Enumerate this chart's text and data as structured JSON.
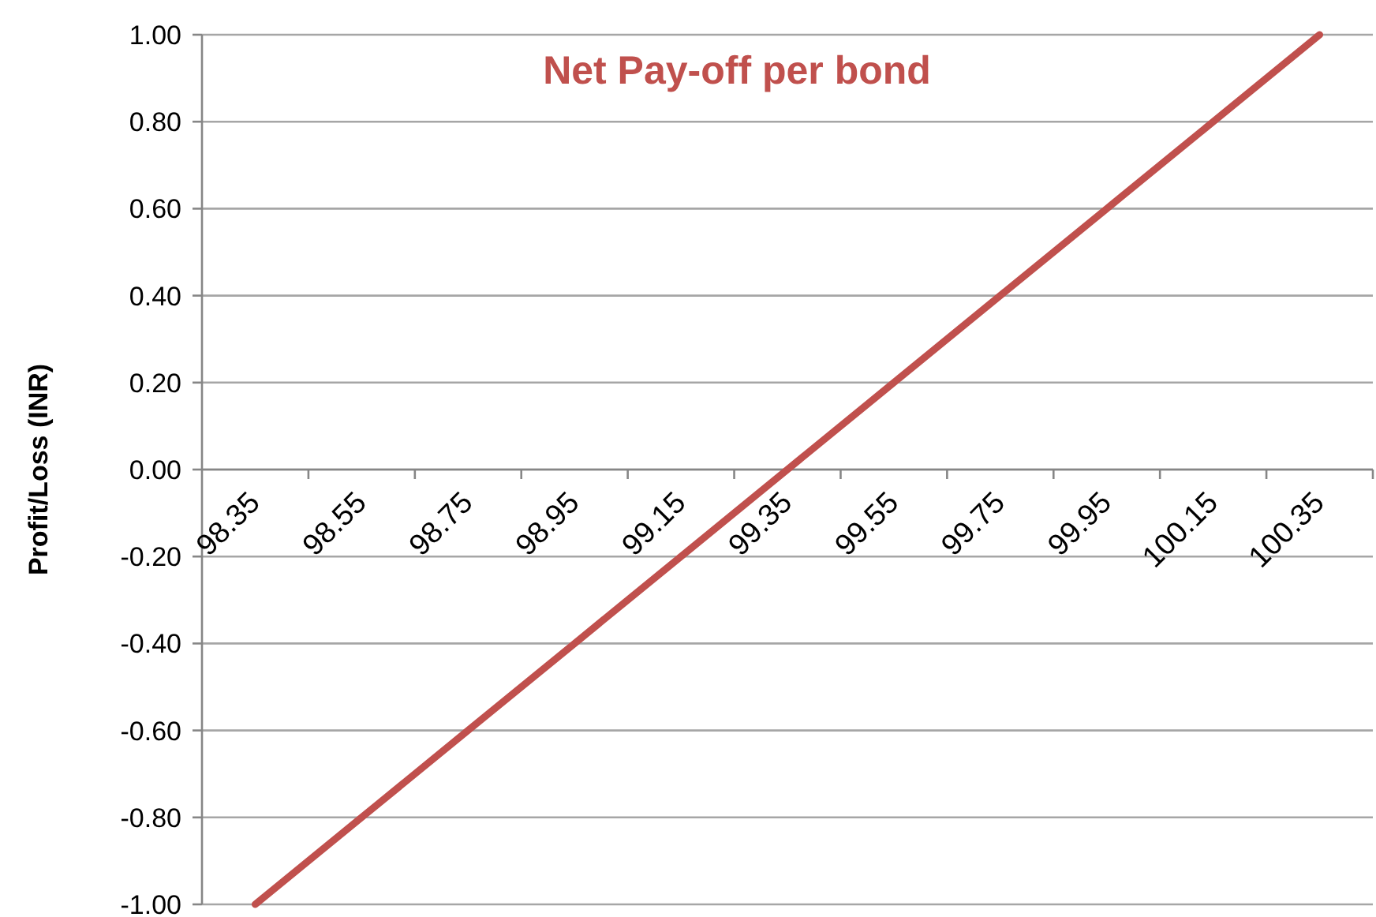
{
  "chart_data": {
    "type": "line",
    "title": "Net Pay-off per bond",
    "ylabel": "Profit/Loss (INR)",
    "categories": [
      "98.35",
      "98.55",
      "98.75",
      "98.95",
      "99.15",
      "99.35",
      "99.55",
      "99.75",
      "99.95",
      "100.15",
      "100.35"
    ],
    "series": [
      {
        "color": "#c0504d",
        "values": [
          -1,
          -0.8,
          -0.6,
          -0.4,
          -0.2,
          0,
          0.2,
          0.4,
          0.6,
          0.8,
          1
        ]
      }
    ],
    "ylim": [
      -1,
      1
    ],
    "yticks": [
      {
        "value": -1,
        "label": "-1.00"
      },
      {
        "value": -0.8,
        "label": "-0.80"
      },
      {
        "value": -0.6,
        "label": "-0.60"
      },
      {
        "value": -0.4,
        "label": "-0.40"
      },
      {
        "value": -0.2,
        "label": "-0.20"
      },
      {
        "value": 0,
        "label": "0.00"
      },
      {
        "value": 0.2,
        "label": "0.20"
      },
      {
        "value": 0.4,
        "label": "0.40"
      },
      {
        "value": 0.6,
        "label": "0.60"
      },
      {
        "value": 0.8,
        "label": "0.80"
      },
      {
        "value": 1,
        "label": "1.00"
      }
    ],
    "grid": "y",
    "marker": "none",
    "line_style": "solid"
  }
}
